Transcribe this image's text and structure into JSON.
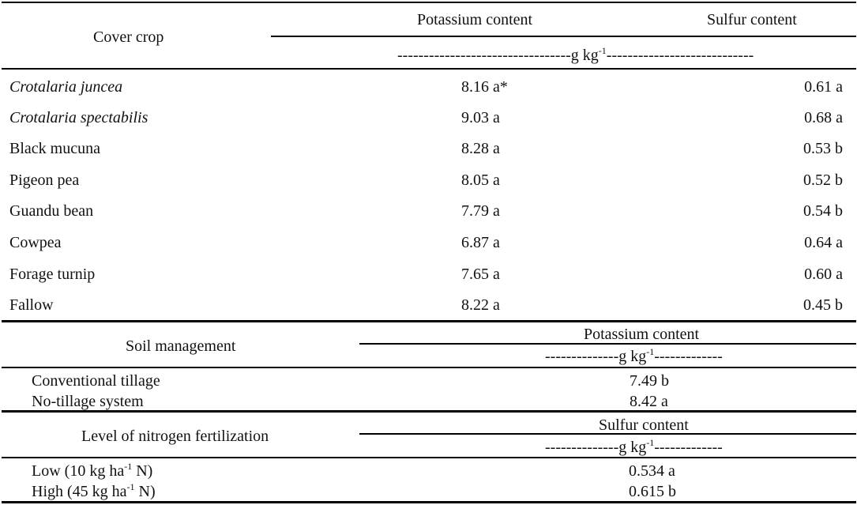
{
  "section1": {
    "row_header": "Cover crop",
    "col_potassium": "Potassium content",
    "col_sulfur": "Sulfur content",
    "unit_dashes_left": "---------------------------------",
    "unit_text": "g kg",
    "unit_exp": "-1",
    "unit_dashes_right": "----------------------------",
    "rows": [
      {
        "name": "Crotalaria juncea",
        "italic": true,
        "potassium": "8.16 a*",
        "sulfur": "0.61 a"
      },
      {
        "name": "Crotalaria spectabilis",
        "italic": true,
        "potassium": "9.03 a",
        "sulfur": "0.68 a"
      },
      {
        "name": "Black mucuna",
        "italic": false,
        "potassium": "8.28 a",
        "sulfur": "0.53 b"
      },
      {
        "name": "Pigeon pea",
        "italic": false,
        "potassium": "8.05 a",
        "sulfur": "0.52 b"
      },
      {
        "name": "Guandu bean",
        "italic": false,
        "potassium": "7.79 a",
        "sulfur": "0.54 b"
      },
      {
        "name": "Cowpea",
        "italic": false,
        "potassium": "6.87 a",
        "sulfur": "0.64 a"
      },
      {
        "name": "Forage turnip",
        "italic": false,
        "potassium": "7.65 a",
        "sulfur": "0.60 a"
      },
      {
        "name": "Fallow",
        "italic": false,
        "potassium": "8.22 a",
        "sulfur": "0.45 b"
      }
    ]
  },
  "section2": {
    "row_header": "Soil management",
    "col_header": "Potassium content",
    "unit_dashes_left": "--------------",
    "unit_text": "g kg",
    "unit_exp": "-1",
    "unit_dashes_right": "-------------",
    "rows": [
      {
        "name": "Conventional tillage",
        "value": "7.49 b"
      },
      {
        "name": "No-tillage system",
        "value": "8.42 a"
      }
    ]
  },
  "section3": {
    "row_header": "Level of nitrogen fertilization",
    "col_header": "Sulfur content",
    "unit_dashes_left": "--------------",
    "unit_text": "g kg",
    "unit_exp": "-1",
    "unit_dashes_right": "-------------",
    "rows": [
      {
        "name_pre": "Low (10 kg ha",
        "name_exp": "-1",
        "name_post": " N)",
        "value": "0.534 a"
      },
      {
        "name_pre": "High (45 kg ha",
        "name_exp": "-1",
        "name_post": " N)",
        "value": "0.615 b"
      }
    ]
  }
}
